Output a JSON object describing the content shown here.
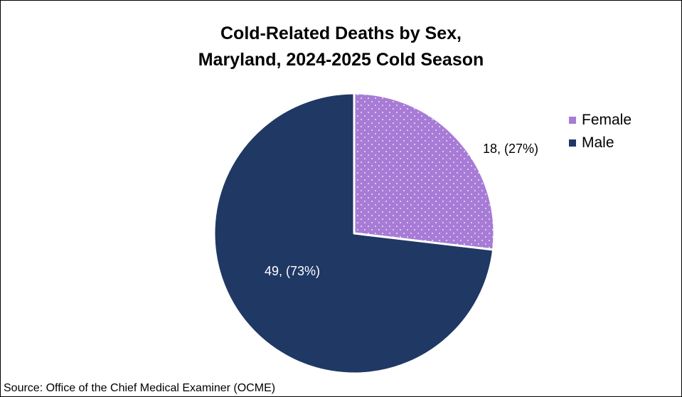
{
  "chart_data": {
    "type": "pie",
    "title_lines": [
      "Cold-Related Deaths by Sex,",
      "Maryland, 2024-2025 Cold Season"
    ],
    "slices": [
      {
        "name": "Female",
        "value": 18,
        "percent": 27,
        "label": "18, (27%)",
        "color": "#A77BD6",
        "pattern": "dotted"
      },
      {
        "name": "Male",
        "value": 49,
        "percent": 73,
        "label": "49, (73%)",
        "color": "#203864",
        "pattern": "solid"
      }
    ],
    "legend": {
      "position": "right",
      "entries": [
        "Female",
        "Male"
      ]
    },
    "source": "Source: Office of the Chief Medical Examiner (OCME)"
  }
}
